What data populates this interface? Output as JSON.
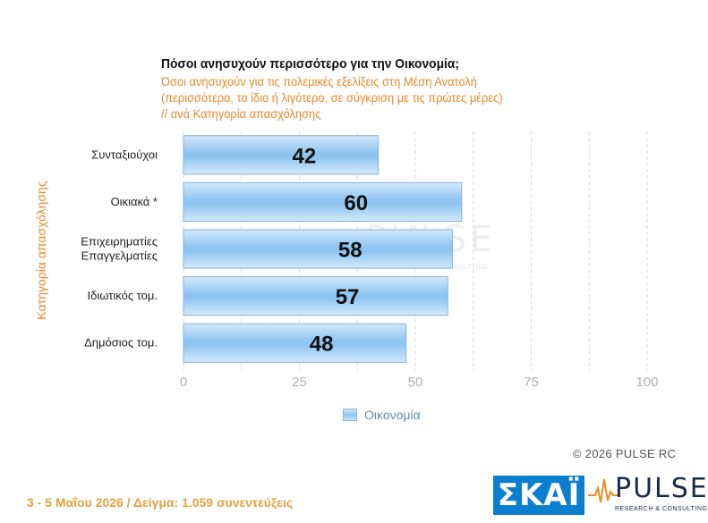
{
  "chart_data": {
    "type": "bar",
    "orientation": "horizontal",
    "title": "Πόσοι ανησυχούν περισσότερο για την Οικονομία;",
    "subtitle_lines": [
      "Όσοι ανησυχούν για τις πολεμικές εξελίξεις στη Μέση Ανατολή",
      "(περισσότερο, το ίδιο ή λιγότερο, σε σύγκριση με τις πρώτες μέρες)",
      " // ανά Κατηγορία απασχόλησης"
    ],
    "ylabel": "Κατηγορία απασχόλησης",
    "xlabel": "",
    "categories": [
      [
        "Συνταξιούχοι"
      ],
      [
        "Οικιακά *"
      ],
      [
        "Επιχειρηματίες",
        "Επαγγελματίες"
      ],
      [
        "Ιδιωτικός τομ."
      ],
      [
        "Δημόσιος τομ."
      ]
    ],
    "series": [
      {
        "name": "Οικονομία",
        "values": [
          42,
          60,
          58,
          57,
          48
        ]
      }
    ],
    "xlim": [
      0,
      100
    ],
    "xticks": [
      0,
      25,
      50,
      75,
      100
    ],
    "grid": true,
    "legend_position": "bottom",
    "bar_color": "#9fcdf3",
    "bar_edge_color": "#7fb3e0"
  },
  "watermark": {
    "word": "PULSE",
    "tagline": "RESEARCH & CONSULTING"
  },
  "copyright": "©  2026  PULSE RC",
  "footer": "3 - 5  Μαΐου 2026  /  Δείγμα:  1.059 συνεντεύξεις",
  "logos": {
    "skai": "ΣΚΑΪ",
    "pulse_word": "PULSE",
    "pulse_tagline": "RESEARCH & CONSULTING"
  },
  "colors": {
    "accent_orange": "#e8882d",
    "legend_text": "#5b8dc6",
    "skai_blue": "#0b7fcf",
    "pulse_navy": "#1a2a4a",
    "pulse_orange": "#f08a24"
  }
}
